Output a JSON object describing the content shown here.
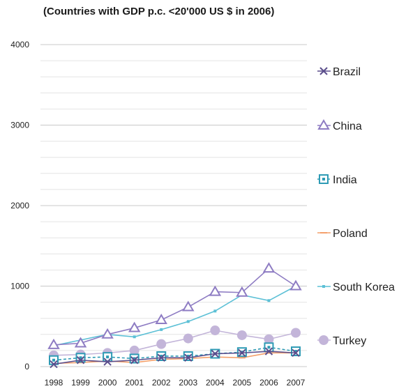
{
  "chart_data": {
    "type": "line",
    "subtitle": "(Countries with GDP p.c. <20'000 US $ in 2006)",
    "categories": [
      "1998",
      "1999",
      "2000",
      "2001",
      "2002",
      "2003",
      "2004",
      "2005",
      "2006",
      "2007"
    ],
    "ylim": [
      0,
      4000
    ],
    "yticks": [
      0,
      1000,
      2000,
      3000,
      4000
    ],
    "grid": true,
    "legend_position": "right",
    "series": [
      {
        "name": "Brazil",
        "color": "#5b4e8c",
        "marker": "x",
        "dash": false,
        "values": [
          30,
          80,
          60,
          80,
          110,
          110,
          160,
          170,
          190,
          170
        ]
      },
      {
        "name": "China",
        "color": "#8e7cc3",
        "marker": "triangle",
        "dash": false,
        "values": [
          270,
          290,
          400,
          480,
          580,
          740,
          930,
          920,
          1220,
          1000
        ]
      },
      {
        "name": "India",
        "color": "#2e9bb5",
        "marker": "square",
        "dash": true,
        "values": [
          80,
          110,
          120,
          100,
          130,
          130,
          160,
          180,
          240,
          190
        ]
      },
      {
        "name": "Poland",
        "color": "#f4a06b",
        "marker": "dash",
        "dash": false,
        "values": [
          40,
          50,
          70,
          50,
          90,
          100,
          120,
          110,
          170,
          170
        ]
      },
      {
        "name": "South Korea",
        "color": "#5cc0d6",
        "marker": "dot-small",
        "dash": false,
        "values": [
          260,
          330,
          400,
          370,
          460,
          560,
          690,
          890,
          820,
          1000
        ]
      },
      {
        "name": "Turkey",
        "color": "#c3b5d9",
        "marker": "circle",
        "dash": false,
        "values": [
          140,
          150,
          170,
          200,
          280,
          350,
          450,
          390,
          340,
          420
        ]
      }
    ]
  }
}
